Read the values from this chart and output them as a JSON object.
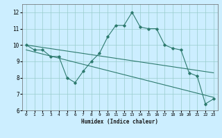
{
  "xlabel": "Humidex (Indice chaleur)",
  "bg_color": "#cceeff",
  "grid_color": "#99cccc",
  "line_color": "#2d7a6e",
  "xlim": [
    -0.5,
    23.5
  ],
  "ylim": [
    6,
    12.5
  ],
  "yticks": [
    6,
    7,
    8,
    9,
    10,
    11,
    12
  ],
  "xticks": [
    0,
    1,
    2,
    3,
    4,
    5,
    6,
    7,
    8,
    9,
    10,
    11,
    12,
    13,
    14,
    15,
    16,
    17,
    18,
    19,
    20,
    21,
    22,
    23
  ],
  "series1_x": [
    0,
    1,
    2,
    3,
    4,
    5,
    6,
    7,
    8,
    9,
    10,
    11,
    12,
    13,
    14,
    15,
    16,
    17,
    18,
    19,
    20,
    21,
    22,
    23
  ],
  "series1_y": [
    10.0,
    9.7,
    9.7,
    9.3,
    9.3,
    8.0,
    7.7,
    8.4,
    9.0,
    9.5,
    10.5,
    11.2,
    11.2,
    12.0,
    11.1,
    11.0,
    11.0,
    10.0,
    9.8,
    9.7,
    8.3,
    8.1,
    6.4,
    6.7
  ],
  "series2_x": [
    0,
    23
  ],
  "series2_y": [
    10.0,
    8.3
  ],
  "series3_x": [
    0,
    23
  ],
  "series3_y": [
    9.7,
    6.8
  ]
}
